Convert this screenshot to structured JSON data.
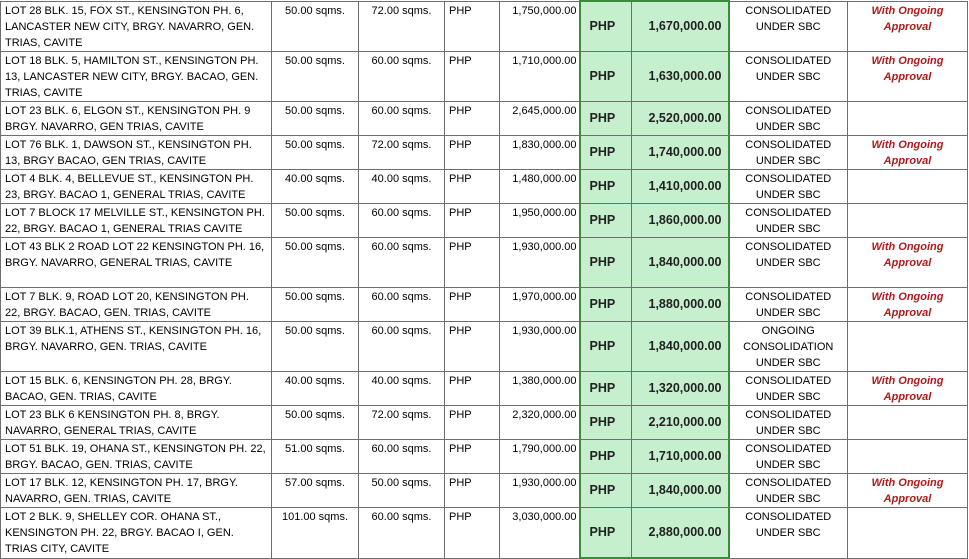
{
  "rows": [
    {
      "address": "LOT 28 BLK. 15, FOX ST., KENSINGTON PH. 6, LANCASTER NEW CITY, BRGY. NAVARRO, GEN. TRIAS, CAVITE",
      "lot_area": "50.00 sqms.",
      "floor_area": "72.00 sqms.",
      "currency": "PHP",
      "old_price": "1,750,000.00",
      "new_currency": "PHP",
      "new_price": "1,670,000.00",
      "status": "CONSOLIDATED UNDER SBC",
      "remark": "With Ongoing Approval"
    },
    {
      "address": "LOT 18 BLK. 5, HAMILTON ST., KENSINGTON PH. 13, LANCASTER NEW CITY, BRGY. BACAO, GEN. TRIAS, CAVITE",
      "lot_area": "50.00 sqms.",
      "floor_area": "60.00 sqms.",
      "currency": "PHP",
      "old_price": "1,710,000.00",
      "new_currency": "PHP",
      "new_price": "1,630,000.00",
      "status": "CONSOLIDATED UNDER SBC",
      "remark": "With Ongoing Approval"
    },
    {
      "address": "LOT 23 BLK. 6, ELGON ST., KENSINGTON PH. 9 BRGY. NAVARRO, GEN TRIAS, CAVITE",
      "lot_area": "50.00 sqms.",
      "floor_area": "60.00 sqms.",
      "currency": "PHP",
      "old_price": "2,645,000.00",
      "new_currency": "PHP",
      "new_price": "2,520,000.00",
      "status": "CONSOLIDATED UNDER SBC",
      "remark": ""
    },
    {
      "address": "LOT 76 BLK. 1, DAWSON ST., KENSINGTON PH. 13, BRGY BACAO, GEN TRIAS, CAVITE",
      "lot_area": "50.00 sqms.",
      "floor_area": "72.00 sqms.",
      "currency": "PHP",
      "old_price": "1,830,000.00",
      "new_currency": "PHP",
      "new_price": "1,740,000.00",
      "status": "CONSOLIDATED UNDER SBC",
      "remark": "With Ongoing Approval"
    },
    {
      "address": "LOT 4 BLK. 4, BELLEVUE ST., KENSINGTON PH. 23, BRGY. BACAO 1, GENERAL TRIAS, CAVITE",
      "lot_area": "40.00 sqms.",
      "floor_area": "40.00 sqms.",
      "currency": "PHP",
      "old_price": "1,480,000.00",
      "new_currency": "PHP",
      "new_price": "1,410,000.00",
      "status": "CONSOLIDATED UNDER SBC",
      "remark": ""
    },
    {
      "address": "LOT 7 BLOCK 17 MELVILLE ST., KENSINGTON PH. 22, BRGY. BACAO 1, GENERAL TRIAS CAVITE",
      "lot_area": "50.00 sqms.",
      "floor_area": "60.00 sqms.",
      "currency": "PHP",
      "old_price": "1,950,000.00",
      "new_currency": "PHP",
      "new_price": "1,860,000.00",
      "status": "CONSOLIDATED UNDER SBC",
      "remark": ""
    },
    {
      "address": "LOT 43 BLK 2 ROAD LOT 22 KENSINGTON PH. 16, BRGY. NAVARRO, GENERAL TRIAS, CAVITE",
      "lot_area": "50.00 sqms.",
      "floor_area": "60.00 sqms.",
      "currency": "PHP",
      "old_price": "1,930,000.00",
      "new_currency": "PHP",
      "new_price": "1,840,000.00",
      "status": "CONSOLIDATED UNDER SBC",
      "remark": "With Ongoing Approval"
    },
    {
      "address": "LOT 7 BLK. 9, ROAD LOT 20, KENSINGTON PH. 22, BRGY. BACAO, GEN. TRIAS, CAVITE",
      "lot_area": "50.00 sqms.",
      "floor_area": "60.00 sqms.",
      "currency": "PHP",
      "old_price": "1,970,000.00",
      "new_currency": "PHP",
      "new_price": "1,880,000.00",
      "status": "CONSOLIDATED UNDER SBC",
      "remark": "With Ongoing Approval"
    },
    {
      "address": "LOT 39 BLK.1, ATHENS ST., KENSINGTON PH. 16, BRGY. NAVARRO, GEN. TRIAS, CAVITE",
      "lot_area": "50.00 sqms.",
      "floor_area": "60.00 sqms.",
      "currency": "PHP",
      "old_price": "1,930,000.00",
      "new_currency": "PHP",
      "new_price": "1,840,000.00",
      "status": "ONGOING CONSOLIDATION UNDER SBC",
      "remark": ""
    },
    {
      "address": "LOT 15 BLK. 6, KENSINGTON PH. 28, BRGY. BACAO, GEN. TRIAS, CAVITE",
      "lot_area": "40.00 sqms.",
      "floor_area": "40.00 sqms.",
      "currency": "PHP",
      "old_price": "1,380,000.00",
      "new_currency": "PHP",
      "new_price": "1,320,000.00",
      "status": "CONSOLIDATED UNDER SBC",
      "remark": "With Ongoing Approval"
    },
    {
      "address": "LOT 23 BLK 6 KENSINGTON PH. 8, BRGY. NAVARRO, GENERAL TRIAS, CAVITE",
      "lot_area": "50.00 sqms.",
      "floor_area": "72.00 sqms.",
      "currency": "PHP",
      "old_price": "2,320,000.00",
      "new_currency": "PHP",
      "new_price": "2,210,000.00",
      "status": "CONSOLIDATED UNDER SBC",
      "remark": ""
    },
    {
      "address": "LOT 51 BLK. 19, OHANA ST., KENSINGTON PH. 22, BRGY. BACAO, GEN. TRIAS, CAVITE",
      "lot_area": "51.00 sqms.",
      "floor_area": "60.00 sqms.",
      "currency": "PHP",
      "old_price": "1,790,000.00",
      "new_currency": "PHP",
      "new_price": "1,710,000.00",
      "status": "CONSOLIDATED UNDER SBC",
      "remark": ""
    },
    {
      "address": "LOT 17 BLK. 12, KENSINGTON PH. 17, BRGY. NAVARRO, GEN. TRIAS, CAVITE",
      "lot_area": "57.00 sqms.",
      "floor_area": "50.00 sqms.",
      "currency": "PHP",
      "old_price": "1,930,000.00",
      "new_currency": "PHP",
      "new_price": "1,840,000.00",
      "status": "CONSOLIDATED UNDER SBC",
      "remark": "With Ongoing Approval"
    },
    {
      "address": "LOT 2 BLK. 9, SHELLEY COR. OHANA ST., KENSINGTON PH. 22, BRGY. BACAO I, GEN. TRIAS CITY, CAVITE",
      "lot_area": "101.00 sqms.",
      "floor_area": "60.00 sqms.",
      "currency": "PHP",
      "old_price": "3,030,000.00",
      "new_currency": "PHP",
      "new_price": "2,880,000.00",
      "status": "CONSOLIDATED UNDER SBC",
      "remark": ""
    }
  ]
}
